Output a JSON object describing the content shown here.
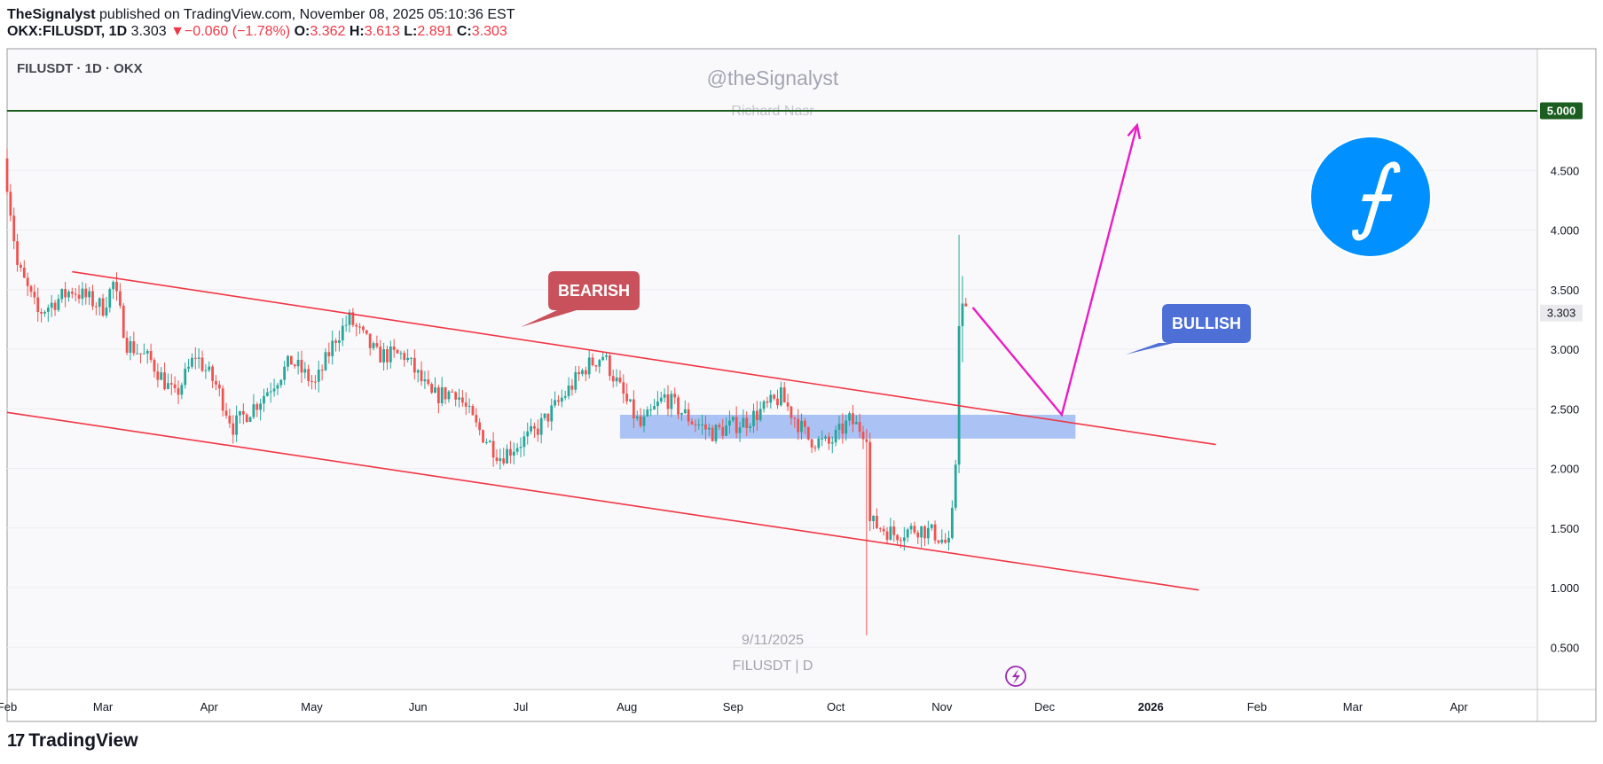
{
  "header": {
    "publisher": "TheSignalyst",
    "published_text": "published on TradingView.com, November 08, 2025 05:10:36 EST",
    "symbol": "OKX:FILUSDT, 1D",
    "last": "3.303",
    "change": "−0.060 (−1.78%)",
    "open_label": "O:",
    "open": "3.362",
    "high_label": "H:",
    "high": "3.613",
    "low_label": "L:",
    "low": "2.891",
    "close_label": "C:",
    "close": "3.303"
  },
  "chart_header": {
    "title": "FILUSDT · 1D · OKX"
  },
  "watermark": {
    "handle": "@theSignalyst",
    "name": "Richard Nasr",
    "date": "9/11/2025",
    "symbol": "FILUSDT | D"
  },
  "annotations": {
    "bearish": "BEARISH",
    "bullish": "BULLISH",
    "logo_glyph": "⨍"
  },
  "footer": {
    "brand": "TradingView",
    "logo_mark": "17"
  },
  "colors": {
    "up": "#26a69a",
    "down": "#ef5350",
    "channel": "#f23645",
    "projection": "#e91ec2",
    "zone": "#a8c0f5",
    "resistance": "#1b5e20",
    "bearish_label": "#c9515b",
    "bullish_label": "#4d6fd6",
    "filecoin": "#0090ff"
  },
  "chart_data": {
    "type": "candlestick",
    "symbol": "FILUSDT",
    "interval": "1D",
    "exchange": "OKX",
    "y_ticks": [
      "0.500",
      "1.000",
      "1.500",
      "2.000",
      "2.500",
      "3.000",
      "3.500",
      "4.000",
      "4.500"
    ],
    "x_ticks": [
      "Feb",
      "Mar",
      "Apr",
      "May",
      "Jun",
      "Jul",
      "Aug",
      "Sep",
      "Oct",
      "Nov",
      "Dec",
      "2026",
      "Feb",
      "Mar",
      "Apr"
    ],
    "resistance_level": "5.000",
    "current_price": "3.303",
    "ylim": [
      0.2,
      5.0
    ],
    "close_path": [
      {
        "date": "2025-02-01",
        "close": 4.4
      },
      {
        "date": "2025-02-04",
        "close": 3.7
      },
      {
        "date": "2025-02-10",
        "close": 3.3
      },
      {
        "date": "2025-02-20",
        "close": 3.5
      },
      {
        "date": "2025-03-01",
        "close": 3.35
      },
      {
        "date": "2025-03-04",
        "close": 3.55
      },
      {
        "date": "2025-03-08",
        "close": 3.05
      },
      {
        "date": "2025-03-15",
        "close": 2.9
      },
      {
        "date": "2025-03-22",
        "close": 2.6
      },
      {
        "date": "2025-03-28",
        "close": 2.95
      },
      {
        "date": "2025-04-03",
        "close": 2.7
      },
      {
        "date": "2025-04-08",
        "close": 2.35
      },
      {
        "date": "2025-04-15",
        "close": 2.55
      },
      {
        "date": "2025-04-25",
        "close": 2.9
      },
      {
        "date": "2025-05-02",
        "close": 2.7
      },
      {
        "date": "2025-05-08",
        "close": 3.1
      },
      {
        "date": "2025-05-12",
        "close": 3.25
      },
      {
        "date": "2025-05-20",
        "close": 2.95
      },
      {
        "date": "2025-05-28",
        "close": 2.95
      },
      {
        "date": "2025-06-05",
        "close": 2.6
      },
      {
        "date": "2025-06-12",
        "close": 2.65
      },
      {
        "date": "2025-06-18",
        "close": 2.35
      },
      {
        "date": "2025-06-25",
        "close": 2.1
      },
      {
        "date": "2025-07-05",
        "close": 2.3
      },
      {
        "date": "2025-07-12",
        "close": 2.55
      },
      {
        "date": "2025-07-20",
        "close": 2.85
      },
      {
        "date": "2025-07-25",
        "close": 2.95
      },
      {
        "date": "2025-08-01",
        "close": 2.55
      },
      {
        "date": "2025-08-05",
        "close": 2.35
      },
      {
        "date": "2025-08-12",
        "close": 2.6
      },
      {
        "date": "2025-08-20",
        "close": 2.4
      },
      {
        "date": "2025-08-26",
        "close": 2.3
      },
      {
        "date": "2025-09-05",
        "close": 2.4
      },
      {
        "date": "2025-09-15",
        "close": 2.6
      },
      {
        "date": "2025-09-23",
        "close": 2.25
      },
      {
        "date": "2025-09-29",
        "close": 2.2
      },
      {
        "date": "2025-10-05",
        "close": 2.4
      },
      {
        "date": "2025-10-10",
        "close": 2.3
      },
      {
        "date": "2025-10-11",
        "close": 1.55
      },
      {
        "date": "2025-10-18",
        "close": 1.45
      },
      {
        "date": "2025-10-25",
        "close": 1.5
      },
      {
        "date": "2025-10-30",
        "close": 1.45
      },
      {
        "date": "2025-11-03",
        "close": 1.35
      },
      {
        "date": "2025-11-04",
        "close": 1.6
      },
      {
        "date": "2025-11-05",
        "close": 2.05
      },
      {
        "date": "2025-11-06",
        "close": 3.25
      },
      {
        "date": "2025-11-07",
        "close": 3.36
      },
      {
        "date": "2025-11-08",
        "close": 3.303
      }
    ],
    "notable_wicks": [
      {
        "date": "2025-10-10",
        "low": 0.6
      },
      {
        "date": "2025-11-06",
        "high": 3.96
      },
      {
        "date": "2025-11-07",
        "high": 3.613,
        "low": 2.891
      }
    ],
    "channel": {
      "upper": [
        {
          "date": "2025-02-20",
          "price": 3.65
        },
        {
          "date": "2026-01-20",
          "price": 2.2
        }
      ],
      "lower": [
        {
          "date": "2025-02-01",
          "price": 2.47
        },
        {
          "date": "2026-01-15",
          "price": 0.98
        }
      ]
    },
    "demand_zone": {
      "from": "2025-07-30",
      "to": "2025-12-10",
      "low": 2.25,
      "high": 2.45
    },
    "projection": [
      {
        "date": "2025-11-10",
        "price": 3.35
      },
      {
        "date": "2025-12-06",
        "price": 2.45
      },
      {
        "date": "2025-12-28",
        "price": 4.88
      }
    ]
  }
}
